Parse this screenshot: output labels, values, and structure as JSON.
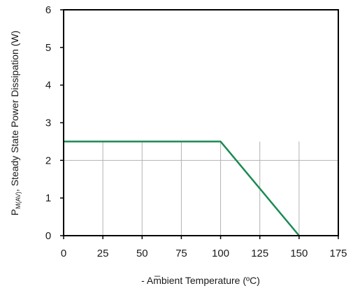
{
  "chart_data": {
    "type": "line",
    "title": "",
    "xlabel": "- Am̅bient Temperature (ºC)",
    "ylabel": {
      "prefix": "P",
      "subscript": "M(AV)",
      "suffix": ", Steady State Power Dissipation (W)"
    },
    "xlim": [
      0,
      175
    ],
    "ylim": [
      0,
      6
    ],
    "x_ticks": [
      0,
      25,
      50,
      75,
      100,
      125,
      150,
      175
    ],
    "y_ticks": [
      0,
      1,
      2,
      3,
      4,
      5,
      6
    ],
    "grid": {
      "vertical_x": [
        25,
        50,
        75,
        100,
        125,
        150
      ],
      "vertical_to_y": 2.5,
      "horizontal_y": [
        2
      ],
      "horizontal_from_x": 100
    },
    "series": [
      {
        "color": "#1b8a52",
        "points": [
          [
            0,
            2.5
          ],
          [
            100,
            2.5
          ],
          [
            150,
            0
          ]
        ]
      }
    ]
  }
}
